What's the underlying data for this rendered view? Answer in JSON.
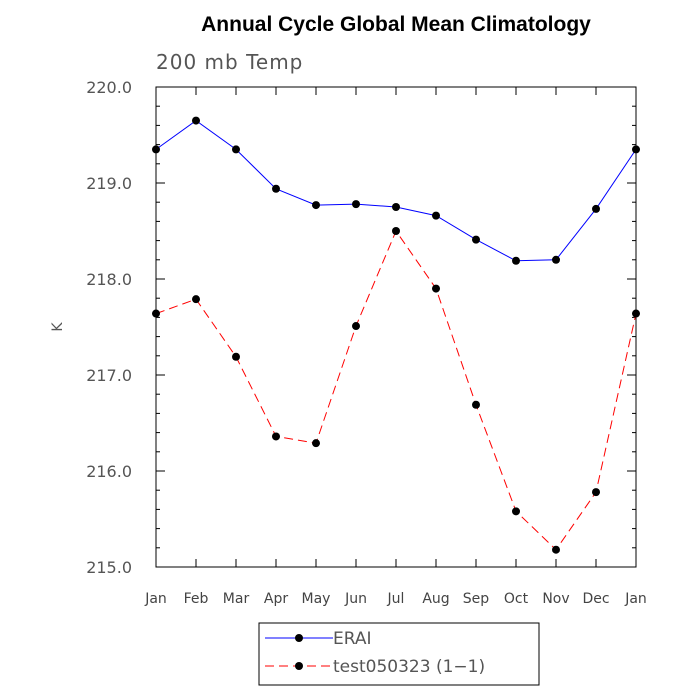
{
  "chart_data": {
    "type": "line",
    "title": "Annual Cycle Global Mean Climatology",
    "subtitle": "200 mb Temp",
    "ylabel": "K",
    "xlabel": "",
    "categories": [
      "Jan",
      "Feb",
      "Mar",
      "Apr",
      "May",
      "Jun",
      "Jul",
      "Aug",
      "Sep",
      "Oct",
      "Nov",
      "Dec",
      "Jan"
    ],
    "ylim": [
      215.0,
      220.0
    ],
    "yticks": [
      "215.0",
      "216.0",
      "217.0",
      "218.0",
      "219.0",
      "220.0"
    ],
    "grid": false,
    "legend_position": "bottom",
    "series": [
      {
        "name": "ERAI",
        "color": "#0000ff",
        "line_style": "solid",
        "marker": "filled-circle",
        "values": [
          219.35,
          219.65,
          219.35,
          218.94,
          218.77,
          218.78,
          218.75,
          218.66,
          218.41,
          218.19,
          218.2,
          218.73,
          219.35
        ]
      },
      {
        "name": "test050323 (1−1)",
        "color": "#ff0000",
        "line_style": "dashed",
        "marker": "filled-circle",
        "values": [
          217.64,
          217.79,
          217.19,
          216.36,
          216.29,
          217.51,
          218.5,
          217.9,
          216.69,
          215.58,
          215.18,
          215.78,
          217.64
        ]
      }
    ]
  }
}
